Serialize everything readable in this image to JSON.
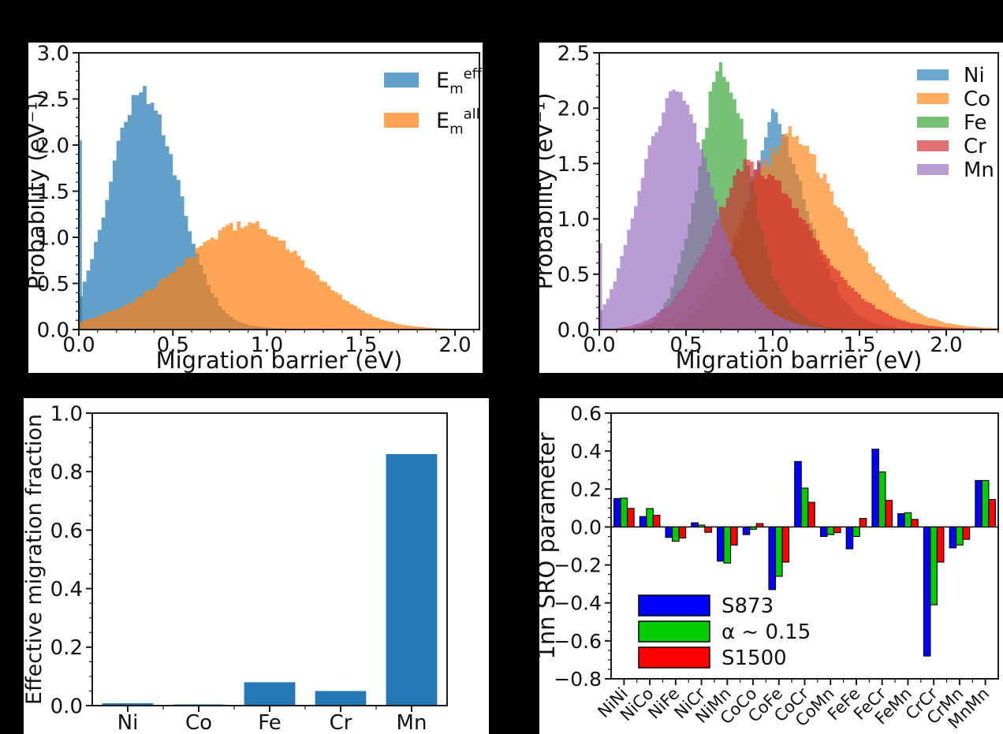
{
  "figure": {
    "background": "#000000",
    "panel_background": "#ffffff",
    "axis_color": "#1a1a1a",
    "text_color": "#111111"
  },
  "chart_data": [
    {
      "id": "barrier-distribution-effective-vs-all",
      "type": "area",
      "style": "histogram",
      "xlabel": "Migration barrier (eV)",
      "ylabel": "Probability (eV⁻¹)",
      "xlim": [
        0,
        2.13
      ],
      "ylim": [
        0,
        3.0
      ],
      "xticks": [
        0.0,
        0.5,
        1.0,
        1.5,
        2.0
      ],
      "yticks": [
        0.0,
        0.5,
        1.0,
        1.5,
        2.0,
        2.5,
        3.0
      ],
      "bin_width": 0.02,
      "grid": false,
      "legend_position": "upper right",
      "series": [
        {
          "name": "Em_eff",
          "label_parts": [
            {
              "t": "E",
              "k": "base"
            },
            {
              "t": "m",
              "k": "sub"
            },
            {
              "t": "eff",
              "k": "sup"
            }
          ],
          "color": "#1f77b4",
          "opacity": 0.7,
          "spike": {
            "x": 0.0,
            "height": 2.05
          },
          "points": [
            [
              0,
              0.3
            ],
            [
              0.02,
              0.45
            ],
            [
              0.05,
              0.62
            ],
            [
              0.1,
              1.0
            ],
            [
              0.15,
              1.45
            ],
            [
              0.2,
              1.9
            ],
            [
              0.25,
              2.3
            ],
            [
              0.3,
              2.55
            ],
            [
              0.33,
              2.65
            ],
            [
              0.36,
              2.6
            ],
            [
              0.4,
              2.42
            ],
            [
              0.45,
              2.15
            ],
            [
              0.5,
              1.8
            ],
            [
              0.55,
              1.4
            ],
            [
              0.6,
              1.0
            ],
            [
              0.65,
              0.68
            ],
            [
              0.7,
              0.44
            ],
            [
              0.75,
              0.27
            ],
            [
              0.8,
              0.15
            ],
            [
              0.85,
              0.09
            ],
            [
              0.9,
              0.05
            ],
            [
              1.0,
              0.02
            ],
            [
              1.1,
              0.01
            ],
            [
              1.2,
              0
            ]
          ]
        },
        {
          "name": "Em_all",
          "label_parts": [
            {
              "t": "E",
              "k": "base"
            },
            {
              "t": "m",
              "k": "sub"
            },
            {
              "t": "all",
              "k": "sup"
            }
          ],
          "color": "#ff7f0e",
          "opacity": 0.7,
          "points": [
            [
              0,
              0.08
            ],
            [
              0.1,
              0.14
            ],
            [
              0.2,
              0.22
            ],
            [
              0.3,
              0.32
            ],
            [
              0.4,
              0.46
            ],
            [
              0.5,
              0.63
            ],
            [
              0.6,
              0.8
            ],
            [
              0.7,
              0.97
            ],
            [
              0.8,
              1.1
            ],
            [
              0.85,
              1.14
            ],
            [
              0.9,
              1.15
            ],
            [
              0.95,
              1.13
            ],
            [
              1.0,
              1.07
            ],
            [
              1.1,
              0.92
            ],
            [
              1.2,
              0.72
            ],
            [
              1.3,
              0.52
            ],
            [
              1.4,
              0.35
            ],
            [
              1.5,
              0.21
            ],
            [
              1.6,
              0.12
            ],
            [
              1.7,
              0.06
            ],
            [
              1.8,
              0.03
            ],
            [
              1.9,
              0.015
            ],
            [
              2.0,
              0.008
            ],
            [
              2.13,
              0
            ]
          ]
        }
      ]
    },
    {
      "id": "barrier-distribution-by-element",
      "type": "area",
      "style": "histogram",
      "xlabel": "Migration barrier (eV)",
      "ylabel": "Probability (eV⁻¹)",
      "xlim": [
        0,
        2.3
      ],
      "ylim": [
        0,
        2.5
      ],
      "xticks": [
        0.0,
        0.5,
        1.0,
        1.5,
        2.0
      ],
      "yticks": [
        0.0,
        0.5,
        1.0,
        1.5,
        2.0,
        2.5
      ],
      "bin_width": 0.02,
      "grid": false,
      "legend_position": "upper right",
      "series": [
        {
          "name": "Ni",
          "color": "#1f77b4",
          "opacity": 0.65,
          "points": [
            [
              0.35,
              0
            ],
            [
              0.4,
              0.02
            ],
            [
              0.5,
              0.08
            ],
            [
              0.6,
              0.2
            ],
            [
              0.7,
              0.45
            ],
            [
              0.8,
              0.85
            ],
            [
              0.9,
              1.4
            ],
            [
              0.95,
              1.7
            ],
            [
              1.0,
              1.93
            ],
            [
              1.05,
              1.87
            ],
            [
              1.1,
              1.62
            ],
            [
              1.15,
              1.4
            ],
            [
              1.2,
              1.1
            ],
            [
              1.3,
              0.6
            ],
            [
              1.4,
              0.28
            ],
            [
              1.5,
              0.12
            ],
            [
              1.6,
              0.05
            ],
            [
              1.7,
              0.02
            ],
            [
              1.8,
              0
            ]
          ]
        },
        {
          "name": "Co",
          "color": "#ff7f0e",
          "opacity": 0.65,
          "points": [
            [
              0.15,
              0
            ],
            [
              0.2,
              0.02
            ],
            [
              0.3,
              0.05
            ],
            [
              0.4,
              0.1
            ],
            [
              0.5,
              0.18
            ],
            [
              0.6,
              0.32
            ],
            [
              0.7,
              0.55
            ],
            [
              0.8,
              0.9
            ],
            [
              0.9,
              1.3
            ],
            [
              1.0,
              1.6
            ],
            [
              1.05,
              1.72
            ],
            [
              1.1,
              1.77
            ],
            [
              1.15,
              1.74
            ],
            [
              1.2,
              1.65
            ],
            [
              1.3,
              1.35
            ],
            [
              1.4,
              1.05
            ],
            [
              1.5,
              0.78
            ],
            [
              1.6,
              0.52
            ],
            [
              1.7,
              0.33
            ],
            [
              1.8,
              0.19
            ],
            [
              1.9,
              0.11
            ],
            [
              2.0,
              0.06
            ],
            [
              2.1,
              0.035
            ],
            [
              2.2,
              0.02
            ],
            [
              2.3,
              0.012
            ]
          ]
        },
        {
          "name": "Fe",
          "color": "#2ca02c",
          "opacity": 0.65,
          "points": [
            [
              0.15,
              0
            ],
            [
              0.2,
              0.01
            ],
            [
              0.3,
              0.06
            ],
            [
              0.4,
              0.28
            ],
            [
              0.5,
              0.8
            ],
            [
              0.55,
              1.2
            ],
            [
              0.6,
              1.7
            ],
            [
              0.65,
              2.15
            ],
            [
              0.7,
              2.4
            ],
            [
              0.73,
              2.37
            ],
            [
              0.78,
              2.15
            ],
            [
              0.82,
              1.85
            ],
            [
              0.87,
              1.45
            ],
            [
              0.92,
              1.0
            ],
            [
              0.97,
              0.68
            ],
            [
              1.0,
              0.5
            ],
            [
              1.1,
              0.22
            ],
            [
              1.2,
              0.09
            ],
            [
              1.3,
              0.03
            ],
            [
              1.4,
              0.01
            ],
            [
              1.5,
              0
            ]
          ]
        },
        {
          "name": "Cr",
          "color": "#d62728",
          "opacity": 0.65,
          "points": [
            [
              0.05,
              0
            ],
            [
              0.1,
              0.01
            ],
            [
              0.2,
              0.04
            ],
            [
              0.3,
              0.1
            ],
            [
              0.4,
              0.22
            ],
            [
              0.5,
              0.42
            ],
            [
              0.6,
              0.72
            ],
            [
              0.7,
              1.08
            ],
            [
              0.8,
              1.42
            ],
            [
              0.85,
              1.5
            ],
            [
              0.9,
              1.49
            ],
            [
              1.0,
              1.38
            ],
            [
              1.1,
              1.18
            ],
            [
              1.2,
              0.93
            ],
            [
              1.3,
              0.68
            ],
            [
              1.4,
              0.47
            ],
            [
              1.5,
              0.31
            ],
            [
              1.6,
              0.19
            ],
            [
              1.7,
              0.11
            ],
            [
              1.8,
              0.06
            ],
            [
              1.9,
              0.035
            ],
            [
              2.0,
              0.02
            ],
            [
              2.1,
              0.012
            ],
            [
              2.3,
              0.005
            ]
          ]
        },
        {
          "name": "Mn",
          "color": "#9467bd",
          "opacity": 0.65,
          "spike": {
            "x": 0.0,
            "height": 0.78
          },
          "points": [
            [
              0,
              0.15
            ],
            [
              0.05,
              0.28
            ],
            [
              0.1,
              0.48
            ],
            [
              0.15,
              0.75
            ],
            [
              0.2,
              1.05
            ],
            [
              0.25,
              1.4
            ],
            [
              0.3,
              1.7
            ],
            [
              0.35,
              1.92
            ],
            [
              0.4,
              2.05
            ],
            [
              0.45,
              2.12
            ],
            [
              0.48,
              2.08
            ],
            [
              0.52,
              2.0
            ],
            [
              0.55,
              1.85
            ],
            [
              0.6,
              1.55
            ],
            [
              0.65,
              1.28
            ],
            [
              0.7,
              0.98
            ],
            [
              0.8,
              0.55
            ],
            [
              0.9,
              0.3
            ],
            [
              1.0,
              0.15
            ],
            [
              1.1,
              0.07
            ],
            [
              1.2,
              0.03
            ],
            [
              1.3,
              0.012
            ],
            [
              1.4,
              0
            ]
          ]
        }
      ]
    },
    {
      "id": "effective-migration-fraction",
      "type": "bar",
      "ylabel": "Effective migration fraction",
      "categories": [
        "Ni",
        "Co",
        "Fe",
        "Cr",
        "Mn"
      ],
      "values": [
        0.008,
        0.004,
        0.08,
        0.05,
        0.86
      ],
      "ylim": [
        0,
        1.0
      ],
      "yticks": [
        0.0,
        0.2,
        0.4,
        0.6,
        0.8,
        1.0
      ],
      "grid": false,
      "bar_color": "#2478b4"
    },
    {
      "id": "sro-parameter",
      "type": "bar",
      "grouped": true,
      "ylabel": "1nn SRO parameter",
      "categories": [
        "NiNi",
        "NiCo",
        "NiFe",
        "NiCr",
        "NiMn",
        "CoCo",
        "CoFe",
        "CoCr",
        "CoMn",
        "FeFe",
        "FeCr",
        "FeMn",
        "CrCr",
        "CrMn",
        "MnMn"
      ],
      "ylim": [
        -0.8,
        0.6
      ],
      "yticks": [
        -0.8,
        -0.6,
        -0.4,
        -0.2,
        0.0,
        0.2,
        0.4,
        0.6
      ],
      "grid": false,
      "legend_position": "lower left",
      "series": [
        {
          "name": "S873",
          "color": "#0000ff",
          "values": [
            0.15,
            0.055,
            -0.055,
            0.022,
            -0.18,
            -0.04,
            -0.33,
            0.345,
            -0.05,
            -0.115,
            0.41,
            0.07,
            -0.68,
            -0.11,
            0.245
          ]
        },
        {
          "name": "α ~ 0.15",
          "color": "#00cc00",
          "values": [
            0.152,
            0.097,
            -0.075,
            0.01,
            -0.19,
            -0.012,
            -0.26,
            0.205,
            -0.04,
            -0.05,
            0.29,
            0.075,
            -0.41,
            -0.095,
            0.245
          ]
        },
        {
          "name": "S1500",
          "color": "#ff0000",
          "values": [
            0.098,
            0.062,
            -0.058,
            -0.028,
            -0.095,
            0.018,
            -0.185,
            0.13,
            -0.03,
            0.045,
            0.14,
            0.04,
            -0.185,
            -0.065,
            0.145
          ]
        }
      ]
    }
  ]
}
